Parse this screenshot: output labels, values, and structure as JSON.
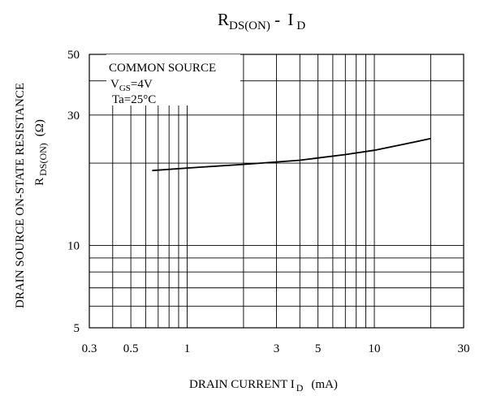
{
  "chart_data": {
    "type": "line",
    "title": {
      "main": "R",
      "sub": "DS(ON)",
      "sep": " - ",
      "main2": "I",
      "sub2": "D"
    },
    "xlabel": {
      "main": "DRAIN CURRENT I",
      "sub": "D",
      "unit": "(mA)"
    },
    "ylabel": {
      "line1": "DRAIN SOURCE ON-STATE RESISTANCE",
      "main": "R",
      "sub": "DS(ON)",
      "unit": "(Ω)"
    },
    "x_scale": "log",
    "y_scale": "log",
    "xlim": [
      0.3,
      30
    ],
    "ylim": [
      5,
      50
    ],
    "x_ticks": [
      {
        "value": 0.3,
        "label": "0.3"
      },
      {
        "value": 0.5,
        "label": "0.5"
      },
      {
        "value": 1,
        "label": "1"
      },
      {
        "value": 3,
        "label": "3"
      },
      {
        "value": 5,
        "label": "5"
      },
      {
        "value": 10,
        "label": "10"
      },
      {
        "value": 30,
        "label": "30"
      }
    ],
    "y_ticks": [
      {
        "value": 5,
        "label": "5"
      },
      {
        "value": 10,
        "label": "10"
      },
      {
        "value": 30,
        "label": "30"
      },
      {
        "value": 50,
        "label": "50"
      }
    ],
    "grid": true,
    "x_gridlines": [
      0.4,
      0.5,
      0.6,
      0.7,
      0.8,
      0.9,
      1,
      2,
      3,
      4,
      5,
      6,
      7,
      8,
      9,
      10,
      20
    ],
    "y_gridlines": [
      6,
      7,
      8,
      9,
      10,
      20,
      30,
      40
    ],
    "annotation": [
      {
        "main": "COMMON SOURCE"
      },
      {
        "main": "V",
        "sub": "GS",
        "rest": "=4V"
      },
      {
        "main": "Ta=25°C"
      }
    ],
    "series": [
      {
        "x": [
          0.65,
          1,
          2,
          3,
          4,
          5,
          7,
          10,
          15,
          20
        ],
        "y": [
          18.8,
          19.2,
          19.8,
          20.2,
          20.5,
          20.9,
          21.5,
          22.3,
          23.6,
          24.6
        ]
      }
    ]
  }
}
